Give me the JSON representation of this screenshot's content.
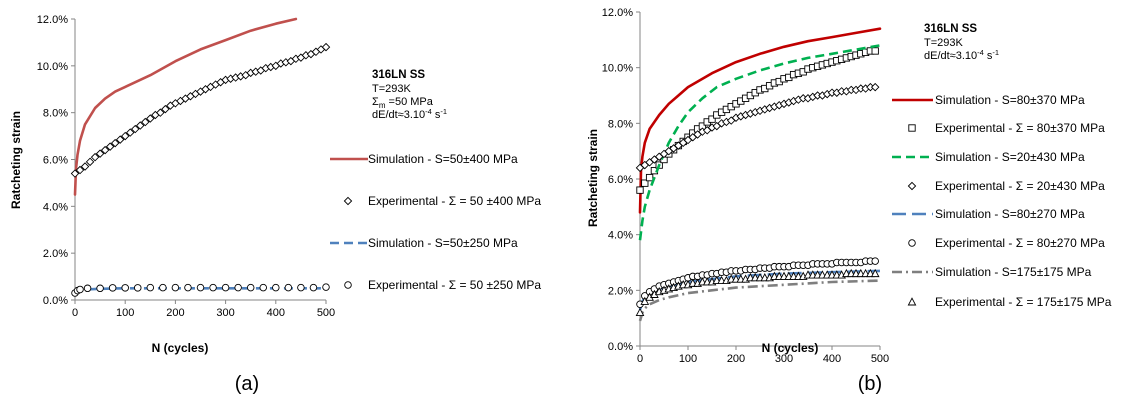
{
  "chart_data": [
    {
      "panel_label": "(a)",
      "type": "line",
      "xlabel": "N (cycles)",
      "ylabel": "Ratcheting strain",
      "xlim": [
        0,
        500
      ],
      "ylim": [
        0,
        12
      ],
      "x_ticks": [
        "0",
        "100",
        "200",
        "300",
        "400",
        "500"
      ],
      "y_ticks": [
        "0.0%",
        "2.0%",
        "4.0%",
        "6.0%",
        "8.0%",
        "10.0%",
        "12.0%"
      ],
      "grid": false,
      "legend_position": "right",
      "annotation": {
        "material": "316LN SS",
        "lines": [
          "T=293K",
          "Σm =50 MPa",
          "dE/dt≈3.10-4 s-1"
        ],
        "sigma_base": "Σ",
        "sigma_sub": "m",
        "sigma_rest": " =50 MPa",
        "rate_base": "dE/dt≈3.10",
        "rate_sup": "-4",
        "rate_unit": " s",
        "rate_unit_sup": "-1"
      },
      "series": [
        {
          "name": "Simulation - S=50±400 MPa",
          "kind": "line",
          "color": "#c0504d",
          "style": "solid",
          "x": [
            0,
            2,
            5,
            10,
            20,
            40,
            60,
            80,
            100,
            150,
            200,
            250,
            300,
            350,
            400,
            440
          ],
          "y": [
            4.5,
            5.6,
            6.2,
            6.8,
            7.5,
            8.2,
            8.6,
            8.9,
            9.1,
            9.6,
            10.2,
            10.7,
            11.1,
            11.5,
            11.8,
            12.0
          ]
        },
        {
          "name": "Experimental - Σ = 50 ±400 MPa",
          "kind": "marker",
          "marker": "diamond",
          "x": [
            0,
            10,
            20,
            30,
            40,
            50,
            60,
            70,
            80,
            90,
            100,
            110,
            120,
            130,
            140,
            150,
            160,
            170,
            180,
            190,
            200,
            210,
            220,
            230,
            240,
            250,
            260,
            270,
            280,
            290,
            300,
            310,
            320,
            330,
            340,
            350,
            360,
            370,
            380,
            390,
            400,
            410,
            420,
            430,
            440,
            450,
            460,
            470,
            480,
            490,
            500
          ],
          "y": [
            5.4,
            5.55,
            5.7,
            5.9,
            6.1,
            6.25,
            6.4,
            6.55,
            6.7,
            6.85,
            7.0,
            7.15,
            7.3,
            7.45,
            7.6,
            7.75,
            7.9,
            8.0,
            8.15,
            8.3,
            8.4,
            8.5,
            8.6,
            8.7,
            8.8,
            8.9,
            9.0,
            9.1,
            9.2,
            9.3,
            9.4,
            9.45,
            9.5,
            9.55,
            9.6,
            9.7,
            9.75,
            9.8,
            9.9,
            9.95,
            10.0,
            10.1,
            10.15,
            10.2,
            10.3,
            10.35,
            10.45,
            10.5,
            10.6,
            10.7,
            10.8
          ]
        },
        {
          "name": "Simulation - S=50±250 MPa",
          "kind": "line",
          "color": "#4f81bd",
          "style": "dashed",
          "x": [
            0,
            5,
            20,
            50,
            100,
            200,
            300,
            400,
            500
          ],
          "y": [
            0.3,
            0.4,
            0.45,
            0.48,
            0.5,
            0.5,
            0.5,
            0.5,
            0.5
          ]
        },
        {
          "name": "Experimental - Σ = 50 ±250 MPa",
          "kind": "marker",
          "marker": "circle",
          "x": [
            0,
            5,
            10,
            25,
            50,
            75,
            100,
            125,
            150,
            175,
            200,
            225,
            250,
            275,
            300,
            325,
            350,
            375,
            400,
            425,
            450,
            475,
            500
          ],
          "y": [
            0.3,
            0.4,
            0.45,
            0.5,
            0.5,
            0.52,
            0.52,
            0.52,
            0.53,
            0.53,
            0.53,
            0.53,
            0.53,
            0.53,
            0.53,
            0.53,
            0.53,
            0.53,
            0.53,
            0.53,
            0.53,
            0.53,
            0.55
          ]
        }
      ]
    },
    {
      "panel_label": "(b)",
      "type": "line",
      "xlabel": "N (cycles)",
      "ylabel": "Ratcheting strain",
      "xlim": [
        0,
        500
      ],
      "ylim": [
        0,
        12
      ],
      "x_ticks": [
        "0",
        "100",
        "200",
        "300",
        "400",
        "500"
      ],
      "y_ticks": [
        "0.0%",
        "2.0%",
        "4.0%",
        "6.0%",
        "8.0%",
        "10.0%",
        "12.0%"
      ],
      "grid": false,
      "legend_position": "right",
      "annotation": {
        "material": "316LN SS",
        "lines": [
          "T=293K",
          "dE/dt≈3.10-4 s-1"
        ],
        "rate_base": "dE/dt≈3.10",
        "rate_sup": "-4",
        "rate_unit": " s",
        "rate_unit_sup": "-1"
      },
      "series": [
        {
          "name": "Simulation - S=80±370 MPa",
          "kind": "line",
          "color": "#c00000",
          "style": "solid",
          "x": [
            0,
            2,
            5,
            10,
            20,
            40,
            60,
            80,
            100,
            150,
            200,
            250,
            300,
            350,
            400,
            450,
            500
          ],
          "y": [
            4.8,
            6.3,
            6.8,
            7.3,
            7.8,
            8.3,
            8.7,
            9.0,
            9.3,
            9.8,
            10.2,
            10.5,
            10.75,
            10.95,
            11.1,
            11.25,
            11.4
          ]
        },
        {
          "name": "Experimental - Σ = 80±370 MPa",
          "kind": "marker",
          "marker": "square",
          "x": [
            0,
            10,
            20,
            30,
            40,
            50,
            60,
            70,
            80,
            90,
            100,
            110,
            120,
            130,
            140,
            150,
            160,
            170,
            180,
            190,
            200,
            210,
            220,
            230,
            240,
            250,
            260,
            270,
            280,
            290,
            300,
            310,
            320,
            330,
            340,
            350,
            360,
            370,
            380,
            390,
            400,
            410,
            420,
            430,
            440,
            450,
            460,
            470,
            480,
            490
          ],
          "y": [
            5.6,
            5.85,
            6.05,
            6.3,
            6.5,
            6.7,
            6.9,
            7.05,
            7.2,
            7.35,
            7.5,
            7.65,
            7.8,
            7.9,
            8.05,
            8.15,
            8.3,
            8.4,
            8.5,
            8.6,
            8.7,
            8.8,
            8.9,
            9.0,
            9.1,
            9.2,
            9.25,
            9.35,
            9.45,
            9.5,
            9.6,
            9.65,
            9.75,
            9.8,
            9.85,
            9.95,
            10.0,
            10.05,
            10.1,
            10.15,
            10.2,
            10.25,
            10.3,
            10.35,
            10.4,
            10.45,
            10.5,
            10.55,
            10.6,
            10.6
          ]
        },
        {
          "name": "Simulation - S=20±430 MPa",
          "kind": "line",
          "color": "#00b050",
          "style": "dashed",
          "x": [
            0,
            5,
            10,
            20,
            40,
            60,
            80,
            100,
            130,
            160,
            200,
            250,
            300,
            350,
            400,
            450,
            500
          ],
          "y": [
            3.8,
            4.5,
            5.0,
            5.6,
            6.5,
            7.3,
            7.9,
            8.4,
            8.9,
            9.3,
            9.6,
            9.9,
            10.15,
            10.35,
            10.5,
            10.65,
            10.8
          ]
        },
        {
          "name": "Experimental - Σ = 20±430 MPa",
          "kind": "marker",
          "marker": "diamond",
          "x": [
            0,
            10,
            20,
            30,
            40,
            50,
            60,
            70,
            80,
            90,
            100,
            110,
            120,
            130,
            140,
            150,
            160,
            170,
            180,
            190,
            200,
            210,
            220,
            230,
            240,
            250,
            260,
            270,
            280,
            290,
            300,
            310,
            320,
            330,
            340,
            350,
            360,
            370,
            380,
            390,
            400,
            410,
            420,
            430,
            440,
            450,
            460,
            470,
            480,
            490
          ],
          "y": [
            6.4,
            6.5,
            6.6,
            6.7,
            6.8,
            6.9,
            7.0,
            7.1,
            7.2,
            7.3,
            7.4,
            7.5,
            7.6,
            7.7,
            7.75,
            7.85,
            7.9,
            8.0,
            8.05,
            8.1,
            8.2,
            8.25,
            8.3,
            8.35,
            8.4,
            8.45,
            8.5,
            8.55,
            8.6,
            8.65,
            8.7,
            8.75,
            8.8,
            8.85,
            8.9,
            8.9,
            8.95,
            9.0,
            9.0,
            9.05,
            9.1,
            9.1,
            9.15,
            9.15,
            9.2,
            9.2,
            9.25,
            9.25,
            9.3,
            9.3
          ]
        },
        {
          "name": "Simulation - S=80±270 MPa",
          "kind": "line",
          "color": "#4f81bd",
          "style": "longdash",
          "x": [
            0,
            5,
            10,
            20,
            40,
            60,
            100,
            150,
            200,
            300,
            400,
            500
          ],
          "y": [
            1.3,
            1.6,
            1.75,
            1.9,
            2.05,
            2.15,
            2.3,
            2.4,
            2.5,
            2.6,
            2.65,
            2.7
          ]
        },
        {
          "name": "Experimental - Σ = 80±270 MPa",
          "kind": "marker",
          "marker": "circle",
          "x": [
            0,
            10,
            20,
            30,
            40,
            50,
            60,
            70,
            80,
            90,
            100,
            110,
            120,
            130,
            140,
            150,
            160,
            170,
            180,
            190,
            200,
            210,
            220,
            230,
            240,
            250,
            260,
            270,
            280,
            290,
            300,
            310,
            320,
            330,
            340,
            350,
            360,
            370,
            380,
            390,
            400,
            410,
            420,
            430,
            440,
            450,
            460,
            470,
            480,
            490
          ],
          "y": [
            1.5,
            1.8,
            1.95,
            2.05,
            2.15,
            2.2,
            2.25,
            2.3,
            2.35,
            2.4,
            2.45,
            2.5,
            2.5,
            2.55,
            2.55,
            2.6,
            2.6,
            2.65,
            2.65,
            2.7,
            2.7,
            2.7,
            2.75,
            2.75,
            2.75,
            2.8,
            2.8,
            2.8,
            2.85,
            2.85,
            2.85,
            2.85,
            2.9,
            2.9,
            2.9,
            2.9,
            2.95,
            2.95,
            2.95,
            2.95,
            2.95,
            3.0,
            3.0,
            3.0,
            3.0,
            3.0,
            3.0,
            3.05,
            3.05,
            3.05
          ]
        },
        {
          "name": "Simulation - S=175±175 MPa",
          "kind": "line",
          "color": "#7f7f7f",
          "style": "dashdot",
          "x": [
            0,
            5,
            10,
            20,
            40,
            60,
            100,
            150,
            200,
            300,
            400,
            500
          ],
          "y": [
            0.9,
            1.2,
            1.35,
            1.5,
            1.65,
            1.75,
            1.9,
            2.0,
            2.1,
            2.2,
            2.3,
            2.35
          ]
        },
        {
          "name": "Experimental - Σ = 175±175 MPa",
          "kind": "marker",
          "marker": "triangle",
          "x": [
            0,
            10,
            20,
            30,
            40,
            50,
            60,
            70,
            80,
            90,
            100,
            110,
            120,
            130,
            140,
            150,
            160,
            170,
            180,
            190,
            200,
            210,
            220,
            230,
            240,
            250,
            260,
            270,
            280,
            290,
            300,
            310,
            320,
            330,
            340,
            350,
            360,
            370,
            380,
            390,
            400,
            410,
            420,
            430,
            440,
            450,
            460,
            470,
            480,
            490
          ],
          "y": [
            1.2,
            1.6,
            1.75,
            1.85,
            1.95,
            2.0,
            2.05,
            2.1,
            2.15,
            2.2,
            2.2,
            2.25,
            2.25,
            2.3,
            2.3,
            2.3,
            2.35,
            2.35,
            2.35,
            2.4,
            2.4,
            2.4,
            2.4,
            2.45,
            2.45,
            2.45,
            2.45,
            2.45,
            2.5,
            2.5,
            2.5,
            2.5,
            2.5,
            2.5,
            2.5,
            2.55,
            2.55,
            2.55,
            2.55,
            2.55,
            2.55,
            2.55,
            2.55,
            2.6,
            2.6,
            2.6,
            2.6,
            2.6,
            2.6,
            2.6
          ]
        }
      ]
    }
  ]
}
